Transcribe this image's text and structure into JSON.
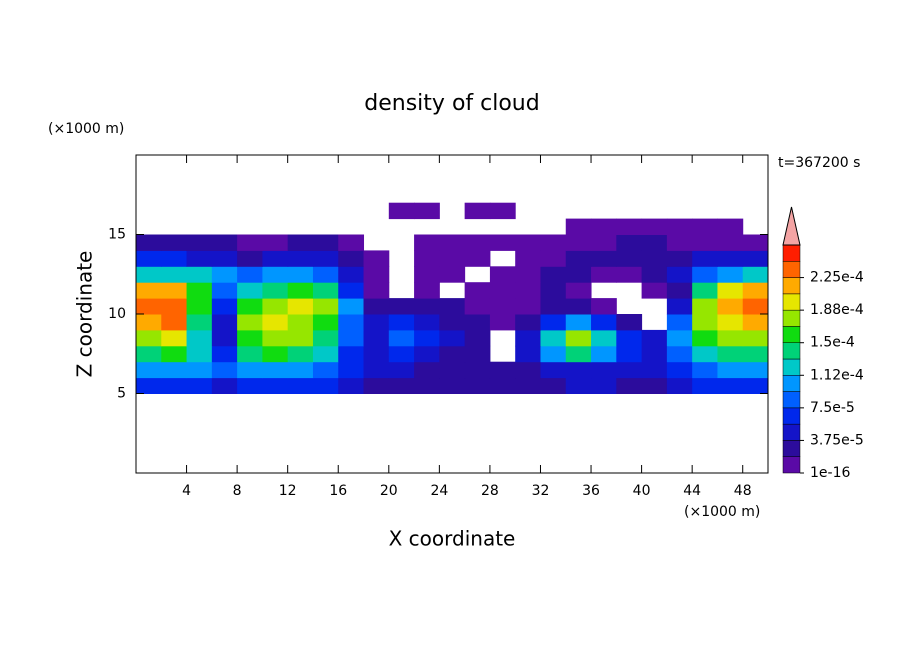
{
  "chart_data": {
    "type": "contour",
    "title": "density of cloud",
    "annotation": "t=367200 s",
    "x_label": "X coordinate",
    "y_label": "Z coordinate",
    "x_unit": "(×1000 m)",
    "y_unit": "(×1000 m)",
    "xlim": [
      0,
      50
    ],
    "ylim": [
      0,
      20
    ],
    "xticks": [
      4,
      8,
      12,
      16,
      20,
      24,
      28,
      32,
      36,
      40,
      44,
      48
    ],
    "yticks": [
      5,
      10,
      15
    ],
    "x": [
      1,
      3,
      5,
      7,
      9,
      11,
      13,
      15,
      17,
      19,
      21,
      23,
      25,
      27,
      29,
      31,
      33,
      35,
      37,
      39,
      41,
      43,
      45,
      47,
      49
    ],
    "y": [
      5.5,
      6.5,
      7.5,
      8.5,
      9.5,
      10.5,
      11.5,
      12.5,
      13.5,
      14.5,
      15.5,
      16.5
    ],
    "z": [
      [
        6.6e-05,
        6.6e-05,
        6.6e-05,
        4.7e-05,
        6.6e-05,
        6.6e-05,
        6.6e-05,
        6.6e-05,
        4.7e-05,
        2.8e-05,
        2.8e-05,
        2.8e-05,
        2.8e-05,
        2.8e-05,
        2.8e-05,
        2.8e-05,
        2.8e-05,
        4.7e-05,
        4.7e-05,
        2.8e-05,
        2.8e-05,
        4.7e-05,
        6.6e-05,
        6.6e-05,
        6.6e-05
      ],
      [
        0.000103,
        0.000103,
        0.000103,
        8.4e-05,
        0.000103,
        0.000103,
        0.000103,
        8.4e-05,
        6.6e-05,
        4.7e-05,
        4.7e-05,
        2.8e-05,
        2.8e-05,
        2.8e-05,
        2.8e-05,
        2.8e-05,
        4.7e-05,
        4.7e-05,
        4.7e-05,
        4.7e-05,
        4.7e-05,
        6.6e-05,
        8.4e-05,
        0.000103,
        0.000103
      ],
      [
        0.000141,
        0.000159,
        0.000122,
        6.6e-05,
        0.000141,
        0.000159,
        0.000141,
        0.000122,
        6.6e-05,
        4.7e-05,
        6.6e-05,
        4.7e-05,
        2.8e-05,
        2.8e-05,
        null,
        4.7e-05,
        0.000103,
        0.000141,
        0.000103,
        6.6e-05,
        4.7e-05,
        8.4e-05,
        0.000122,
        0.000141,
        0.000141
      ],
      [
        0.000178,
        0.000197,
        0.000122,
        4.7e-05,
        0.000159,
        0.000178,
        0.000178,
        0.000141,
        8.4e-05,
        4.7e-05,
        8.4e-05,
        6.6e-05,
        4.7e-05,
        2.8e-05,
        null,
        4.7e-05,
        0.000122,
        0.000178,
        0.000122,
        6.6e-05,
        4.7e-05,
        0.000103,
        0.000159,
        0.000178,
        0.000178
      ],
      [
        0.000216,
        0.000234,
        0.000141,
        4.7e-05,
        0.000178,
        0.000197,
        0.000178,
        0.000159,
        8.4e-05,
        4.7e-05,
        6.6e-05,
        4.7e-05,
        2.8e-05,
        2.8e-05,
        1e-05,
        2.8e-05,
        6.6e-05,
        0.000103,
        6.6e-05,
        2.8e-05,
        null,
        8.4e-05,
        0.000178,
        0.000197,
        0.000216
      ],
      [
        0.000234,
        0.000234,
        0.000159,
        6.6e-05,
        0.000159,
        0.000178,
        0.000197,
        0.000178,
        0.000103,
        2.8e-05,
        2.8e-05,
        2.8e-05,
        2.8e-05,
        1e-05,
        1e-05,
        1e-05,
        2.8e-05,
        2.8e-05,
        1e-05,
        null,
        null,
        4.7e-05,
        0.000178,
        0.000216,
        0.000234
      ],
      [
        0.000216,
        0.000216,
        0.000159,
        8.4e-05,
        0.000122,
        0.000141,
        0.000159,
        0.000141,
        6.6e-05,
        1e-05,
        null,
        1e-05,
        null,
        1e-05,
        1e-05,
        1e-05,
        2.8e-05,
        1e-05,
        null,
        null,
        1e-05,
        2.8e-05,
        0.000141,
        0.000197,
        0.000216
      ],
      [
        0.000122,
        0.000122,
        0.000122,
        0.000103,
        8.4e-05,
        0.000103,
        0.000103,
        8.4e-05,
        4.7e-05,
        1e-05,
        null,
        1e-05,
        1e-05,
        null,
        1e-05,
        1e-05,
        2.8e-05,
        2.8e-05,
        1e-05,
        1e-05,
        2.8e-05,
        4.7e-05,
        8.4e-05,
        0.000103,
        0.000122
      ],
      [
        6.6e-05,
        6.6e-05,
        4.7e-05,
        4.7e-05,
        2.8e-05,
        4.7e-05,
        4.7e-05,
        4.7e-05,
        2.8e-05,
        1e-05,
        null,
        1e-05,
        1e-05,
        1e-05,
        null,
        1e-05,
        1e-05,
        2.8e-05,
        2.8e-05,
        2.8e-05,
        2.8e-05,
        2.8e-05,
        4.7e-05,
        4.7e-05,
        4.7e-05
      ],
      [
        2.8e-05,
        2.8e-05,
        2.8e-05,
        2.8e-05,
        1e-05,
        1e-05,
        2.8e-05,
        2.8e-05,
        1e-05,
        null,
        null,
        1e-05,
        1e-05,
        1e-05,
        1e-05,
        1e-05,
        1e-05,
        1e-05,
        1e-05,
        2.8e-05,
        2.8e-05,
        1e-05,
        1e-05,
        1e-05,
        1e-05
      ],
      [
        null,
        null,
        null,
        null,
        null,
        null,
        null,
        null,
        null,
        null,
        null,
        null,
        null,
        null,
        null,
        null,
        null,
        1e-05,
        1e-05,
        1e-05,
        1e-05,
        1e-05,
        1e-05,
        1e-05,
        null
      ],
      [
        null,
        null,
        null,
        null,
        null,
        null,
        null,
        null,
        null,
        null,
        1e-05,
        1e-05,
        null,
        1e-05,
        1e-05,
        null,
        null,
        null,
        null,
        null,
        null,
        null,
        null,
        null,
        null
      ]
    ],
    "levels": [
      1e-16,
      1.875e-05,
      3.75e-05,
      5.625e-05,
      7.5e-05,
      9.375e-05,
      0.0001125,
      0.00013125,
      0.00015,
      0.00016875,
      0.0001875,
      0.00020625,
      0.000225,
      0.00024375,
      0.0002625
    ],
    "colors": [
      "#5a0aa6",
      "#2c0c9c",
      "#1414c8",
      "#0028ec",
      "#0060ff",
      "#0096ff",
      "#00c8c8",
      "#00d278",
      "#10dc10",
      "#96e600",
      "#e6e600",
      "#ffaa00",
      "#ff6400",
      "#ff1e00"
    ],
    "extend_color": "#f4a4a4",
    "colorbar_ticks": [
      {
        "value": 1e-16,
        "label": "1e-16"
      },
      {
        "value": 3.75e-05,
        "label": "3.75e-5"
      },
      {
        "value": 7.5e-05,
        "label": "7.5e-5"
      },
      {
        "value": 0.0001125,
        "label": "1.12e-4"
      },
      {
        "value": 0.00015,
        "label": "1.5e-4"
      },
      {
        "value": 0.0001875,
        "label": "1.88e-4"
      },
      {
        "value": 0.000225,
        "label": "2.25e-4"
      }
    ]
  }
}
